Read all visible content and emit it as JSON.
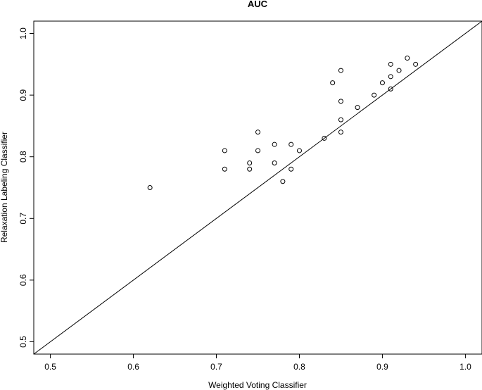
{
  "chart_data": {
    "type": "scatter",
    "title": "AUC",
    "xlabel": "Weighted Voting Classifier",
    "ylabel": "Relaxation Labeling Classifier",
    "xlim": [
      0.48,
      1.02
    ],
    "ylim": [
      0.48,
      1.02
    ],
    "xticks": [
      0.5,
      0.6,
      0.7,
      0.8,
      0.9,
      1.0
    ],
    "yticks": [
      0.5,
      0.6,
      0.7,
      0.8,
      0.9,
      1.0
    ],
    "xtick_labels": [
      "0.5",
      "0.6",
      "0.7",
      "0.8",
      "0.9",
      "1.0"
    ],
    "ytick_labels": [
      "0.5",
      "0.6",
      "0.7",
      "0.8",
      "0.9",
      "1.0"
    ],
    "reference_line": "y = x",
    "grid": false,
    "marker": "open-circle",
    "points": [
      {
        "x": 0.62,
        "y": 0.75
      },
      {
        "x": 0.71,
        "y": 0.81
      },
      {
        "x": 0.71,
        "y": 0.78
      },
      {
        "x": 0.74,
        "y": 0.79
      },
      {
        "x": 0.74,
        "y": 0.78
      },
      {
        "x": 0.75,
        "y": 0.84
      },
      {
        "x": 0.75,
        "y": 0.81
      },
      {
        "x": 0.77,
        "y": 0.82
      },
      {
        "x": 0.77,
        "y": 0.79
      },
      {
        "x": 0.78,
        "y": 0.76
      },
      {
        "x": 0.79,
        "y": 0.82
      },
      {
        "x": 0.79,
        "y": 0.78
      },
      {
        "x": 0.8,
        "y": 0.81
      },
      {
        "x": 0.83,
        "y": 0.83
      },
      {
        "x": 0.84,
        "y": 0.92
      },
      {
        "x": 0.85,
        "y": 0.94
      },
      {
        "x": 0.85,
        "y": 0.89
      },
      {
        "x": 0.85,
        "y": 0.86
      },
      {
        "x": 0.85,
        "y": 0.84
      },
      {
        "x": 0.87,
        "y": 0.88
      },
      {
        "x": 0.89,
        "y": 0.9
      },
      {
        "x": 0.9,
        "y": 0.92
      },
      {
        "x": 0.91,
        "y": 0.95
      },
      {
        "x": 0.91,
        "y": 0.93
      },
      {
        "x": 0.91,
        "y": 0.91
      },
      {
        "x": 0.92,
        "y": 0.94
      },
      {
        "x": 0.93,
        "y": 0.96
      },
      {
        "x": 0.94,
        "y": 0.95
      }
    ]
  }
}
